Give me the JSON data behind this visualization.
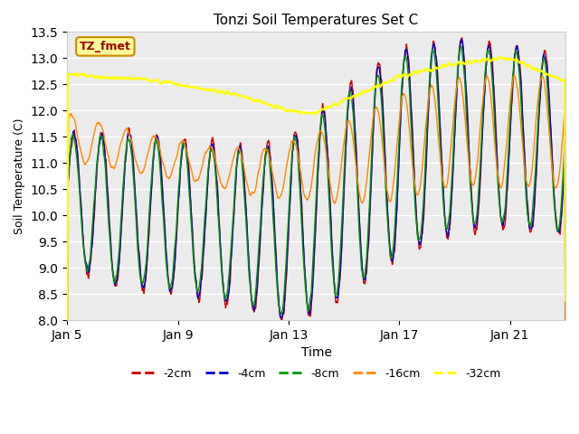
{
  "title": "Tonzi Soil Temperatures Set C",
  "xlabel": "Time",
  "ylabel": "Soil Temperature (C)",
  "ylim": [
    8.0,
    13.5
  ],
  "yticks": [
    8.0,
    8.5,
    9.0,
    9.5,
    10.0,
    10.5,
    11.0,
    11.5,
    12.0,
    12.5,
    13.0,
    13.5
  ],
  "xtick_labels": [
    "Jan 5",
    "Jan 9",
    "Jan 13",
    "Jan 17",
    "Jan 21"
  ],
  "xtick_positions": [
    0,
    4,
    8,
    12,
    16
  ],
  "xlim": [
    0,
    18
  ],
  "colors": {
    "-2cm": "#cc0000",
    "-4cm": "#0000cc",
    "-8cm": "#009900",
    "-16cm": "#ff8800",
    "-32cm": "#ffff00"
  },
  "legend_label": "TZ_fmet",
  "legend_box_color": "#ffff99",
  "legend_box_edge": "#cc8800",
  "plot_bg": "#ebebeb",
  "fig_bg": "#ffffff"
}
